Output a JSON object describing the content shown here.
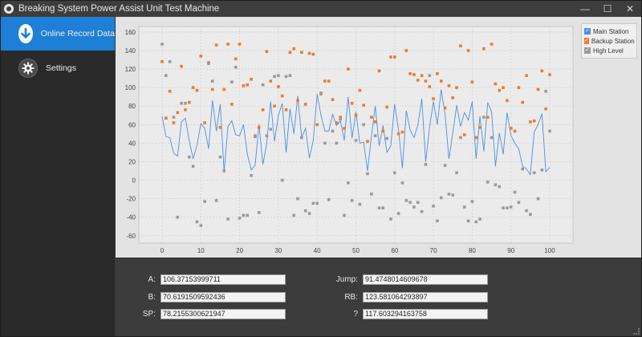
{
  "window": {
    "title": "Breaking System Power Assist Unit Test Machine",
    "minimize_label": "—",
    "maximize_label": "☐",
    "close_label": "✕"
  },
  "sidebar": {
    "items": [
      {
        "label": "Online Record Data",
        "icon": "arrow-down-icon",
        "active": true
      },
      {
        "label": "Settings",
        "icon": "gear-icon",
        "active": false
      }
    ]
  },
  "fields": {
    "a_label": "A:",
    "a_value": "106.37153999711",
    "b_label": "B:",
    "b_value": "70.6191509592436",
    "sp_label": "SP:",
    "sp_value": "78.2155300621947",
    "jump_label": "Jump:",
    "jump_value": "91.4748014609678",
    "rb_label": "RB:",
    "rb_value": "123.581064293897",
    "q_label": "?",
    "q_value": "117.603294163758"
  },
  "colors": {
    "main_station": "#4a90e2",
    "backup_station": "#f07a28",
    "high_level": "#9a9a9a",
    "accent": "#1e7fd6"
  },
  "chart_data": {
    "type": "line",
    "xlim": [
      -6,
      106
    ],
    "ylim": [
      -68,
      166
    ],
    "x_ticks": [
      0,
      10,
      20,
      30,
      40,
      50,
      60,
      70,
      80,
      90,
      100
    ],
    "y_ticks": [
      -60,
      -40,
      -20,
      0,
      20,
      40,
      60,
      80,
      100,
      120,
      140,
      160
    ],
    "grid": true,
    "legend_position": "top-right",
    "series": [
      {
        "name": "Main Station",
        "kind": "line",
        "color": "#4a90e2",
        "values": [
          69,
          47,
          46,
          29,
          26,
          63,
          67,
          43,
          23,
          38,
          61,
          56,
          34,
          86,
          53,
          82,
          9,
          58,
          64,
          49,
          48,
          60,
          28,
          11,
          16,
          60,
          17,
          40,
          85,
          42,
          70,
          83,
          30,
          77,
          50,
          91,
          46,
          56,
          24,
          43,
          93,
          70,
          53,
          53,
          71,
          59,
          64,
          43,
          90,
          45,
          74,
          40,
          41,
          10,
          47,
          80,
          37,
          59,
          30,
          37,
          82,
          54,
          13,
          75,
          54,
          46,
          60,
          88,
          20,
          57,
          85,
          60,
          98,
          71,
          23,
          51,
          81,
          58,
          73,
          65,
          85,
          23,
          69,
          31,
          84,
          74,
          15,
          51,
          28,
          73,
          48,
          40,
          34,
          15,
          12,
          6,
          52,
          60,
          72,
          9,
          14
        ]
      },
      {
        "name": "Backup Station",
        "kind": "scatter",
        "color": "#f07a28",
        "values": [
          128,
          67,
          96,
          62,
          73,
          123,
          76,
          84,
          100,
          97,
          134,
          62,
          127,
          98,
          146,
          57,
          98,
          147,
          82,
          131,
          147,
          102,
          103,
          109,
          47,
          57,
          76,
          139,
          107,
          80,
          101,
          91,
          76,
          138,
          142,
          86,
          138,
          82,
          137,
          136,
          60,
          94,
          107,
          107,
          87,
          62,
          68,
          56,
          120,
          83,
          70,
          97,
          81,
          42,
          68,
          63,
          118,
          53,
          79,
          133,
          133,
          50,
          52,
          140,
          115,
          114,
          108,
          113,
          107,
          101,
          88,
          115,
          107,
          78,
          102,
          89,
          100,
          145,
          49,
          140,
          106,
          46,
          57,
          142,
          68,
          147,
          104,
          97,
          100,
          86,
          56,
          53,
          100,
          84,
          113,
          63,
          64,
          98,
          118,
          77,
          114
        ]
      },
      {
        "name": "High Level",
        "kind": "scatter",
        "color": "#9a9a9a",
        "values": [
          147,
          113,
          128,
          68,
          -40,
          83,
          83,
          25,
          15,
          -45,
          -49,
          -23,
          126,
          107,
          -22,
          25,
          10,
          -42,
          106,
          122,
          -41,
          -38,
          -38,
          5,
          48,
          -35,
          103,
          48,
          55,
          112,
          113,
          0,
          112,
          113,
          -38,
          -20,
          46,
          -33,
          -36,
          -25,
          -25,
          93,
          40,
          -21,
          53,
          40,
          66,
          -38,
          -3,
          -22,
          43,
          -26,
          60,
          7,
          -15,
          48,
          -30,
          -30,
          45,
          -42,
          8,
          -36,
          -3,
          -22,
          -24,
          -29,
          -24,
          -34,
          17,
          113,
          -28,
          -44,
          -19,
          16,
          -15,
          -16,
          8,
          46,
          -29,
          -44,
          -23,
          -45,
          -42,
          68,
          -2,
          46,
          -5,
          -7,
          -30,
          -30,
          -29,
          -13,
          -24,
          12,
          -33,
          -37,
          8,
          -20,
          11,
          96,
          53
        ]
      }
    ]
  }
}
